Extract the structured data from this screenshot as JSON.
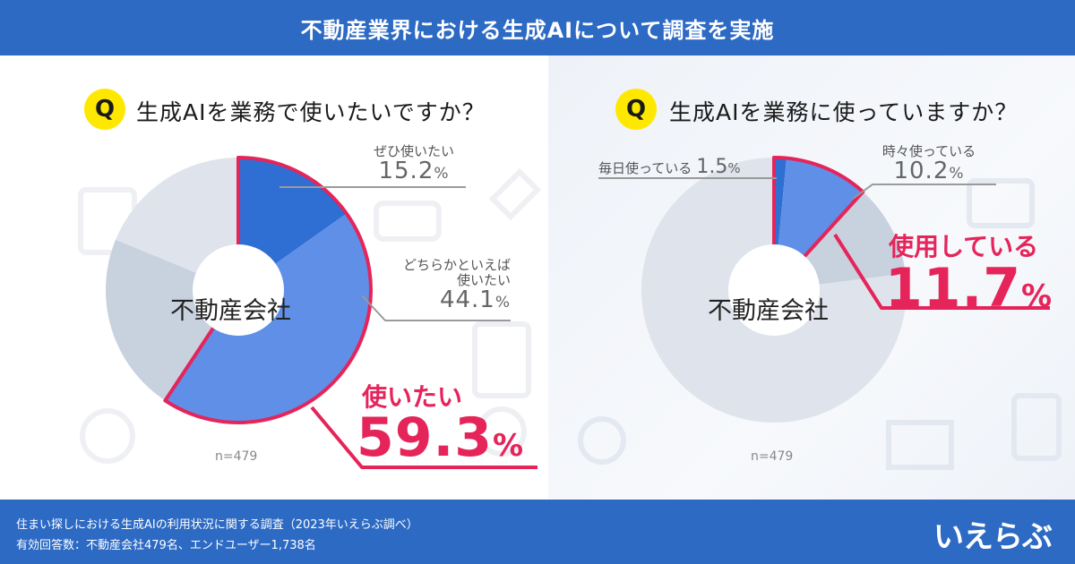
{
  "header": {
    "title": "不動産業界における生成AIについて調査を実施"
  },
  "colors": {
    "header_bg": "#2d6ac4",
    "accent": "#e5245a",
    "q_badge": "#ffe800",
    "slice_dark": "#2f6ed3",
    "slice_mid": "#5f8fe6",
    "slice_gray": "#c8d1de",
    "slice_light": "#dfe4ec"
  },
  "left": {
    "q_badge": "Q",
    "question": "生成AIを業務で使いたいですか？",
    "center_label": "不動産会社",
    "n": "n=479",
    "labels": {
      "zehi_name": "ぜひ使いたい",
      "zehi_value": "15.2",
      "zehi_unit": "%",
      "dochira_name_1": "どちらかといえば",
      "dochira_name_2": "使いたい",
      "dochira_value": "44.1",
      "dochira_unit": "%"
    },
    "highlight": {
      "title": "使いたい",
      "value": "59.3",
      "unit": "%"
    }
  },
  "right": {
    "q_badge": "Q",
    "question": "生成AIを業務に使っていますか？",
    "center_label": "不動産会社",
    "n": "n=479",
    "labels": {
      "mainichi_name": "毎日使っている",
      "mainichi_value": "1.5",
      "mainichi_unit": "%",
      "tokidoki_name": "時々使っている",
      "tokidoki_value": "10.2",
      "tokidoki_unit": "%"
    },
    "highlight": {
      "title": "使用している",
      "value": "11.7",
      "unit": "%"
    }
  },
  "footer": {
    "line1": "住まい探しにおける生成AIの利用状況に関する調査（2023年いえらぶ調べ）",
    "line2": "有効回答数：不動産会社479名、エンドユーザー1,738名",
    "logo": "いえらぶ"
  },
  "chart_data": [
    {
      "type": "pie",
      "title": "生成AIを業務で使いたいですか？",
      "categories": [
        "ぜひ使いたい",
        "どちらかといえば使いたい",
        "",
        ""
      ],
      "values": [
        15.2,
        44.1,
        21.9,
        18.8
      ],
      "highlight": {
        "label": "使いたい",
        "value": 59.3,
        "slices": [
          0,
          1
        ]
      },
      "center_label": "不動産会社",
      "n": 479
    },
    {
      "type": "pie",
      "title": "生成AIを業務に使っていますか？",
      "categories": [
        "毎日使っている",
        "時々使っている",
        "",
        ""
      ],
      "values": [
        1.5,
        10.2,
        11.3,
        77.0
      ],
      "highlight": {
        "label": "使用している",
        "value": 11.7,
        "slices": [
          0,
          1
        ]
      },
      "center_label": "不動産会社",
      "n": 479
    }
  ]
}
